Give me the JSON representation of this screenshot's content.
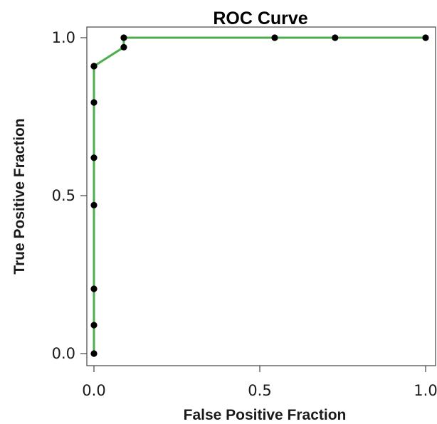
{
  "chart_data": {
    "type": "line",
    "title": "ROC Curve",
    "xlabel": "False Positive Fraction",
    "ylabel": "True Positive Fraction",
    "xlim": [
      0.0,
      1.0
    ],
    "ylim": [
      0.0,
      1.0
    ],
    "xticks": [
      "0.0",
      "0.5",
      "1.0"
    ],
    "yticks": [
      "0.0",
      "0.5",
      "1.0"
    ],
    "grid": false,
    "line_color": "#4cae4c",
    "marker_color": "#000000",
    "series": [
      {
        "x": [
          0.0,
          0.0,
          0.0,
          0.0,
          0.0,
          0.0,
          0.0,
          0.0,
          0.09,
          0.09,
          0.545,
          0.727,
          1.0
        ],
        "y": [
          0.0,
          0.09,
          0.205,
          0.47,
          0.62,
          0.795,
          0.91,
          0.91,
          0.97,
          1.0,
          1.0,
          1.0,
          1.0
        ]
      }
    ]
  }
}
